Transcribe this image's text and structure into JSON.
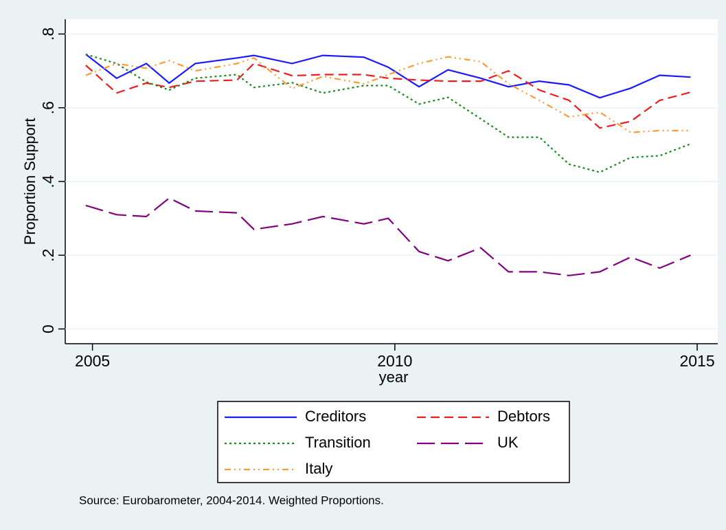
{
  "chart_data": {
    "type": "line",
    "x_label": "year",
    "y_label": "Proportion Support",
    "note": "Source: Eurobarometer, 2004-2014. Weighted Proportions.",
    "x": [
      2004.89,
      2005.4,
      2005.89,
      2006.27,
      2006.7,
      2007.39,
      2007.67,
      2008.3,
      2008.81,
      2009.49,
      2009.89,
      2010.4,
      2010.88,
      2011.42,
      2011.88,
      2012.39,
      2012.88,
      2013.39,
      2013.9,
      2014.38,
      2014.89
    ],
    "series": [
      {
        "name": "Creditors",
        "color": "#1a1aff",
        "dash": "solid",
        "values": [
          0.745,
          0.68,
          0.72,
          0.667,
          0.72,
          0.735,
          0.742,
          0.72,
          0.742,
          0.737,
          0.71,
          0.657,
          0.703,
          0.68,
          0.657,
          0.672,
          0.662,
          0.627,
          0.653,
          0.688,
          0.683
        ]
      },
      {
        "name": "Debtors",
        "color": "#ee1c1c",
        "dash": "dash",
        "values": [
          0.715,
          0.64,
          0.667,
          0.655,
          0.672,
          0.675,
          0.72,
          0.687,
          0.69,
          0.69,
          0.68,
          0.675,
          0.672,
          0.672,
          0.7,
          0.648,
          0.62,
          0.545,
          0.563,
          0.62,
          0.642
        ]
      },
      {
        "name": "Transition",
        "color": "#1a8a1a",
        "dash": "dot",
        "values": [
          0.745,
          0.72,
          0.67,
          0.648,
          0.68,
          0.69,
          0.655,
          0.668,
          0.64,
          0.66,
          0.66,
          0.61,
          0.628,
          0.57,
          0.52,
          0.52,
          0.447,
          0.425,
          0.465,
          0.47,
          0.502
        ]
      },
      {
        "name": "UK",
        "color": "#800080",
        "dash": "longdash",
        "values": [
          0.335,
          0.31,
          0.305,
          0.355,
          0.32,
          0.315,
          0.27,
          0.285,
          0.305,
          0.285,
          0.3,
          0.21,
          0.185,
          0.22,
          0.155,
          0.155,
          0.145,
          0.155,
          0.195,
          0.165,
          0.2
        ]
      },
      {
        "name": "Italy",
        "color": "#ff9933",
        "dash": "dashdot",
        "values": [
          0.688,
          0.72,
          0.707,
          0.728,
          0.7,
          0.72,
          0.735,
          0.652,
          0.685,
          0.665,
          0.69,
          0.72,
          0.738,
          0.725,
          0.665,
          0.62,
          0.575,
          0.588,
          0.533,
          0.538,
          0.538
        ]
      }
    ],
    "xlim": [
      2004.55,
      2015.34
    ],
    "ylim": [
      -0.04,
      0.84
    ],
    "xticks": [
      2005,
      2010,
      2015
    ],
    "yticks": [
      0,
      {
        "value": 0.2,
        "label": ".2"
      },
      {
        "value": 0.4,
        "label": ".4"
      },
      {
        "value": 0.6,
        "label": ".6"
      },
      {
        "value": 0.8,
        "label": ".8"
      }
    ],
    "grid": true,
    "legend_position": "bottom"
  }
}
